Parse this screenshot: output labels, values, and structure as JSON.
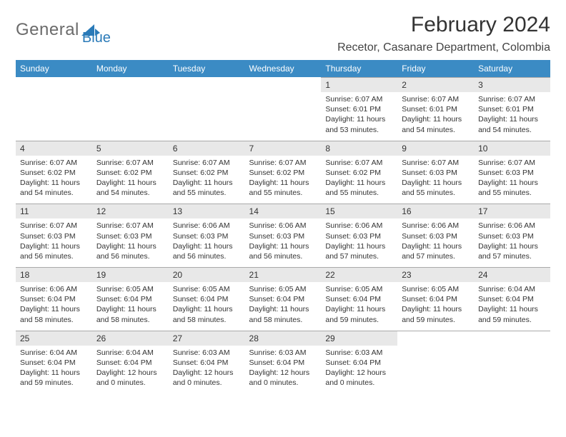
{
  "logo": {
    "textGray": "General",
    "textBlue": "Blue"
  },
  "title": "February 2024",
  "location": "Recetor, Casanare Department, Colombia",
  "colors": {
    "headerBg": "#3b8bc4",
    "dayNumBg": "#e8e8e8",
    "text": "#333333",
    "logoBlue": "#2a7ab8",
    "logoGray": "#6b6b6b"
  },
  "dayNames": [
    "Sunday",
    "Monday",
    "Tuesday",
    "Wednesday",
    "Thursday",
    "Friday",
    "Saturday"
  ],
  "weeks": [
    [
      {
        "n": "",
        "l1": "",
        "l2": "",
        "l3": "",
        "l4": ""
      },
      {
        "n": "",
        "l1": "",
        "l2": "",
        "l3": "",
        "l4": ""
      },
      {
        "n": "",
        "l1": "",
        "l2": "",
        "l3": "",
        "l4": ""
      },
      {
        "n": "",
        "l1": "",
        "l2": "",
        "l3": "",
        "l4": ""
      },
      {
        "n": "1",
        "l1": "Sunrise: 6:07 AM",
        "l2": "Sunset: 6:01 PM",
        "l3": "Daylight: 11 hours",
        "l4": "and 53 minutes."
      },
      {
        "n": "2",
        "l1": "Sunrise: 6:07 AM",
        "l2": "Sunset: 6:01 PM",
        "l3": "Daylight: 11 hours",
        "l4": "and 54 minutes."
      },
      {
        "n": "3",
        "l1": "Sunrise: 6:07 AM",
        "l2": "Sunset: 6:01 PM",
        "l3": "Daylight: 11 hours",
        "l4": "and 54 minutes."
      }
    ],
    [
      {
        "n": "4",
        "l1": "Sunrise: 6:07 AM",
        "l2": "Sunset: 6:02 PM",
        "l3": "Daylight: 11 hours",
        "l4": "and 54 minutes."
      },
      {
        "n": "5",
        "l1": "Sunrise: 6:07 AM",
        "l2": "Sunset: 6:02 PM",
        "l3": "Daylight: 11 hours",
        "l4": "and 54 minutes."
      },
      {
        "n": "6",
        "l1": "Sunrise: 6:07 AM",
        "l2": "Sunset: 6:02 PM",
        "l3": "Daylight: 11 hours",
        "l4": "and 55 minutes."
      },
      {
        "n": "7",
        "l1": "Sunrise: 6:07 AM",
        "l2": "Sunset: 6:02 PM",
        "l3": "Daylight: 11 hours",
        "l4": "and 55 minutes."
      },
      {
        "n": "8",
        "l1": "Sunrise: 6:07 AM",
        "l2": "Sunset: 6:02 PM",
        "l3": "Daylight: 11 hours",
        "l4": "and 55 minutes."
      },
      {
        "n": "9",
        "l1": "Sunrise: 6:07 AM",
        "l2": "Sunset: 6:03 PM",
        "l3": "Daylight: 11 hours",
        "l4": "and 55 minutes."
      },
      {
        "n": "10",
        "l1": "Sunrise: 6:07 AM",
        "l2": "Sunset: 6:03 PM",
        "l3": "Daylight: 11 hours",
        "l4": "and 55 minutes."
      }
    ],
    [
      {
        "n": "11",
        "l1": "Sunrise: 6:07 AM",
        "l2": "Sunset: 6:03 PM",
        "l3": "Daylight: 11 hours",
        "l4": "and 56 minutes."
      },
      {
        "n": "12",
        "l1": "Sunrise: 6:07 AM",
        "l2": "Sunset: 6:03 PM",
        "l3": "Daylight: 11 hours",
        "l4": "and 56 minutes."
      },
      {
        "n": "13",
        "l1": "Sunrise: 6:06 AM",
        "l2": "Sunset: 6:03 PM",
        "l3": "Daylight: 11 hours",
        "l4": "and 56 minutes."
      },
      {
        "n": "14",
        "l1": "Sunrise: 6:06 AM",
        "l2": "Sunset: 6:03 PM",
        "l3": "Daylight: 11 hours",
        "l4": "and 56 minutes."
      },
      {
        "n": "15",
        "l1": "Sunrise: 6:06 AM",
        "l2": "Sunset: 6:03 PM",
        "l3": "Daylight: 11 hours",
        "l4": "and 57 minutes."
      },
      {
        "n": "16",
        "l1": "Sunrise: 6:06 AM",
        "l2": "Sunset: 6:03 PM",
        "l3": "Daylight: 11 hours",
        "l4": "and 57 minutes."
      },
      {
        "n": "17",
        "l1": "Sunrise: 6:06 AM",
        "l2": "Sunset: 6:03 PM",
        "l3": "Daylight: 11 hours",
        "l4": "and 57 minutes."
      }
    ],
    [
      {
        "n": "18",
        "l1": "Sunrise: 6:06 AM",
        "l2": "Sunset: 6:04 PM",
        "l3": "Daylight: 11 hours",
        "l4": "and 58 minutes."
      },
      {
        "n": "19",
        "l1": "Sunrise: 6:05 AM",
        "l2": "Sunset: 6:04 PM",
        "l3": "Daylight: 11 hours",
        "l4": "and 58 minutes."
      },
      {
        "n": "20",
        "l1": "Sunrise: 6:05 AM",
        "l2": "Sunset: 6:04 PM",
        "l3": "Daylight: 11 hours",
        "l4": "and 58 minutes."
      },
      {
        "n": "21",
        "l1": "Sunrise: 6:05 AM",
        "l2": "Sunset: 6:04 PM",
        "l3": "Daylight: 11 hours",
        "l4": "and 58 minutes."
      },
      {
        "n": "22",
        "l1": "Sunrise: 6:05 AM",
        "l2": "Sunset: 6:04 PM",
        "l3": "Daylight: 11 hours",
        "l4": "and 59 minutes."
      },
      {
        "n": "23",
        "l1": "Sunrise: 6:05 AM",
        "l2": "Sunset: 6:04 PM",
        "l3": "Daylight: 11 hours",
        "l4": "and 59 minutes."
      },
      {
        "n": "24",
        "l1": "Sunrise: 6:04 AM",
        "l2": "Sunset: 6:04 PM",
        "l3": "Daylight: 11 hours",
        "l4": "and 59 minutes."
      }
    ],
    [
      {
        "n": "25",
        "l1": "Sunrise: 6:04 AM",
        "l2": "Sunset: 6:04 PM",
        "l3": "Daylight: 11 hours",
        "l4": "and 59 minutes."
      },
      {
        "n": "26",
        "l1": "Sunrise: 6:04 AM",
        "l2": "Sunset: 6:04 PM",
        "l3": "Daylight: 12 hours",
        "l4": "and 0 minutes."
      },
      {
        "n": "27",
        "l1": "Sunrise: 6:03 AM",
        "l2": "Sunset: 6:04 PM",
        "l3": "Daylight: 12 hours",
        "l4": "and 0 minutes."
      },
      {
        "n": "28",
        "l1": "Sunrise: 6:03 AM",
        "l2": "Sunset: 6:04 PM",
        "l3": "Daylight: 12 hours",
        "l4": "and 0 minutes."
      },
      {
        "n": "29",
        "l1": "Sunrise: 6:03 AM",
        "l2": "Sunset: 6:04 PM",
        "l3": "Daylight: 12 hours",
        "l4": "and 0 minutes."
      },
      {
        "n": "",
        "l1": "",
        "l2": "",
        "l3": "",
        "l4": ""
      },
      {
        "n": "",
        "l1": "",
        "l2": "",
        "l3": "",
        "l4": ""
      }
    ]
  ]
}
